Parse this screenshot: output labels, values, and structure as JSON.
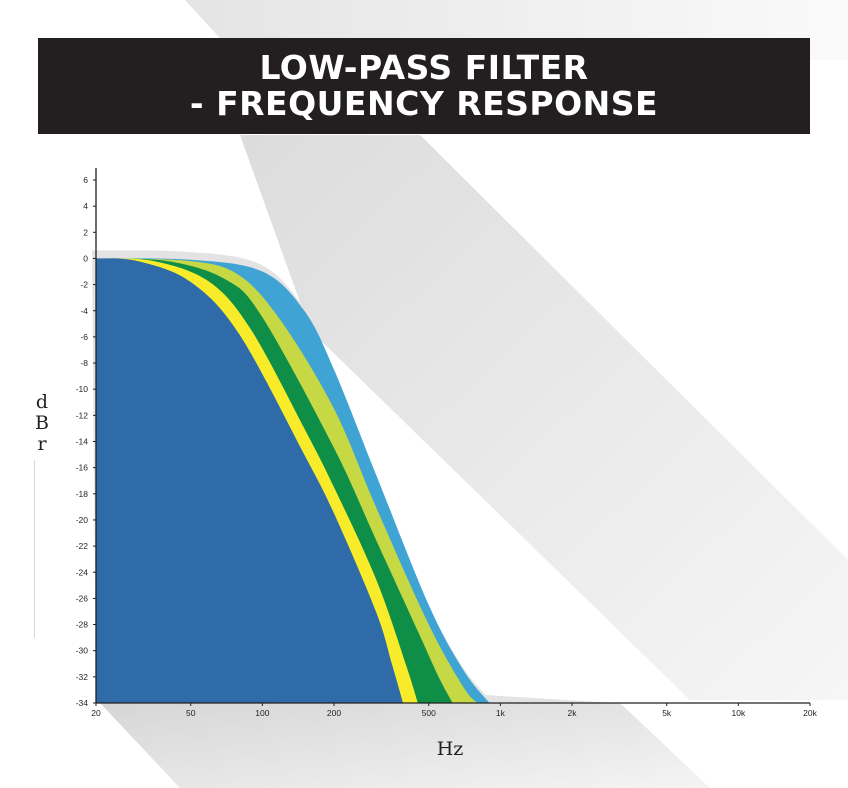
{
  "title": {
    "line1": "LOW-PASS FILTER",
    "line2": "- FREQUENCY RESPONSE"
  },
  "chart_data": {
    "type": "area",
    "title": "LOW-PASS FILTER - FREQUENCY RESPONSE",
    "xlabel": "Hz",
    "ylabel": "dBr",
    "x_scale": "log",
    "xlim": [
      20,
      20000
    ],
    "ylim": [
      -34,
      6
    ],
    "x_ticks": [
      {
        "value": 20,
        "label": "20"
      },
      {
        "value": 50,
        "label": "50"
      },
      {
        "value": 100,
        "label": "100"
      },
      {
        "value": 200,
        "label": "200"
      },
      {
        "value": 500,
        "label": "500"
      },
      {
        "value": 1000,
        "label": "1k"
      },
      {
        "value": 2000,
        "label": "2k"
      },
      {
        "value": 5000,
        "label": "5k"
      },
      {
        "value": 10000,
        "label": "10k"
      },
      {
        "value": 20000,
        "label": "20k"
      }
    ],
    "y_ticks": [
      6,
      4,
      2,
      0,
      -2,
      -4,
      -6,
      -8,
      -10,
      -12,
      -14,
      -16,
      -18,
      -20,
      -22,
      -24,
      -26,
      -28,
      -30,
      -32,
      -34
    ],
    "grid": false,
    "legend": "none",
    "series": [
      {
        "color": "#3fa4d3",
        "x": [
          20,
          50,
          100,
          150,
          200,
          300,
          500,
          700,
          900
        ],
        "y": [
          0,
          -0.1,
          -1.0,
          -4.0,
          -8.5,
          -16.5,
          -26.5,
          -31.5,
          -34
        ]
      },
      {
        "color": "#c6d945",
        "x": [
          20,
          50,
          80,
          120,
          200,
          300,
          500,
          700,
          800
        ],
        "y": [
          0,
          -0.2,
          -1.3,
          -4.8,
          -11.5,
          -19.0,
          -28.0,
          -32.8,
          -34
        ]
      },
      {
        "color": "#0e8e46",
        "x": [
          20,
          40,
          70,
          100,
          200,
          300,
          450,
          550,
          630
        ],
        "y": [
          0,
          -0.2,
          -1.6,
          -4.5,
          -14.5,
          -21.5,
          -28.5,
          -32.0,
          -34
        ]
      },
      {
        "color": "#f8ec2a",
        "x": [
          20,
          35,
          60,
          90,
          150,
          200,
          300,
          400,
          450
        ],
        "y": [
          0,
          -0.2,
          -1.8,
          -5.5,
          -13.0,
          -17.5,
          -24.5,
          -31.0,
          -34
        ]
      },
      {
        "color": "#2e6ba8",
        "x": [
          20,
          30,
          50,
          80,
          150,
          200,
          300,
          350,
          390
        ],
        "y": [
          0,
          -0.2,
          -1.8,
          -5.8,
          -15.0,
          -19.5,
          -27.0,
          -31.0,
          -34
        ]
      }
    ]
  }
}
